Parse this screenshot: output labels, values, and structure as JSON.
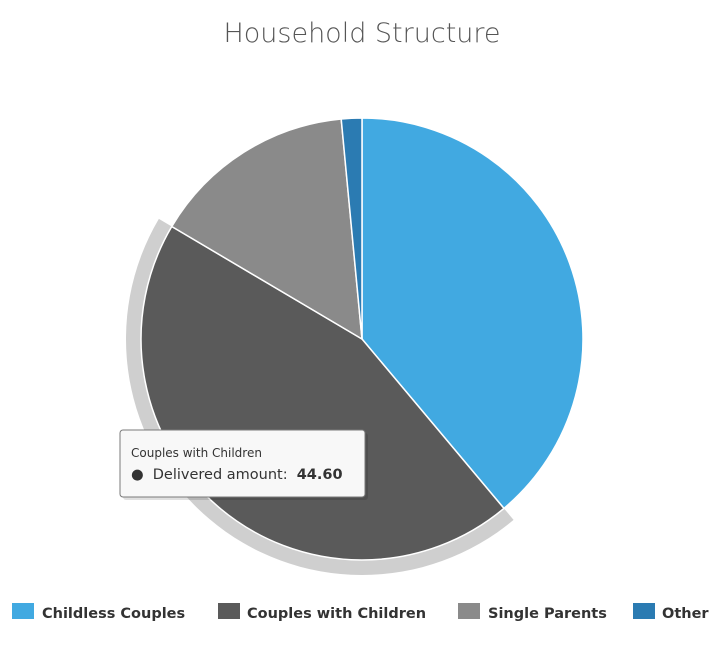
{
  "chart_data": {
    "type": "pie",
    "title": "Household Structure",
    "categories": [
      "Childless Couples",
      "Couples with Children",
      "Single Parents",
      "Other"
    ],
    "values": [
      38.9,
      44.6,
      15.0,
      1.5
    ],
    "colors": [
      "#41a9e1",
      "#5a5a5a",
      "#8a8a8a",
      "#2b7bb2"
    ],
    "highlighted": "Couples with Children",
    "tooltip": {
      "header": "Couples with Children",
      "label": "Delivered amount:",
      "value": "44.60",
      "bullet": "●"
    },
    "legend": {
      "position": "bottom"
    }
  }
}
